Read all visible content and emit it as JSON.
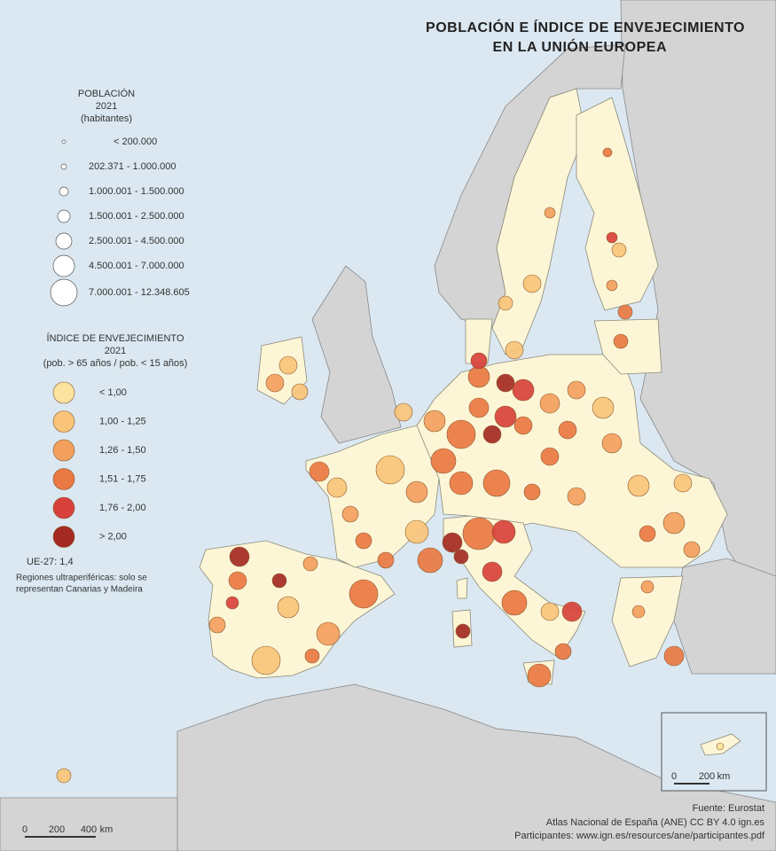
{
  "title": [
    "POBLACIÓN E ÍNDICE DE ENVEJECIMIENTO",
    "EN LA UNIÓN EUROPEA"
  ],
  "legend_population": {
    "title": [
      "POBLACIÓN",
      "2021",
      "(habitantes)"
    ],
    "classes": [
      "< 200.000",
      "202.371 - 1.000.000",
      "1.000.001 - 1.500.000",
      "1.500.001 - 2.500.000",
      "2.500.001 - 4.500.000",
      "4.500.001 - 7.000.000",
      "7.000.001 - 12.348.605"
    ]
  },
  "legend_aging": {
    "title": [
      "ÍNDICE DE ENVEJECIMIENTO",
      "2021",
      "(pob. > 65 años / pob. < 15 años)"
    ],
    "classes": [
      {
        "label": "< 1,00",
        "color": "#fde3a0"
      },
      {
        "label": "1,00 - 1,25",
        "color": "#f9c47a"
      },
      {
        "label": "1,26 - 1,50",
        "color": "#f3a05e"
      },
      {
        "label": "1,51 - 1,75",
        "color": "#ea7843"
      },
      {
        "label": "1,76 - 2,00",
        "color": "#d8413b"
      },
      {
        "label": "> 2,00",
        "color": "#a42a23"
      }
    ]
  },
  "eu_average": "UE-27: 1,4",
  "note": [
    "Regiones ultraperiféricas: solo se",
    "representan Canarias y Madeira"
  ],
  "scale_main": [
    "0",
    "200",
    "400",
    "km"
  ],
  "scale_inset": [
    "0",
    "200",
    "km"
  ],
  "source": [
    "Fuente: Eurostat",
    "Atlas Nacional de España (ANE) CC BY 4.0 ign.es",
    "Participantes: www.ign.es/resources/ane/participantes.pdf"
  ]
}
